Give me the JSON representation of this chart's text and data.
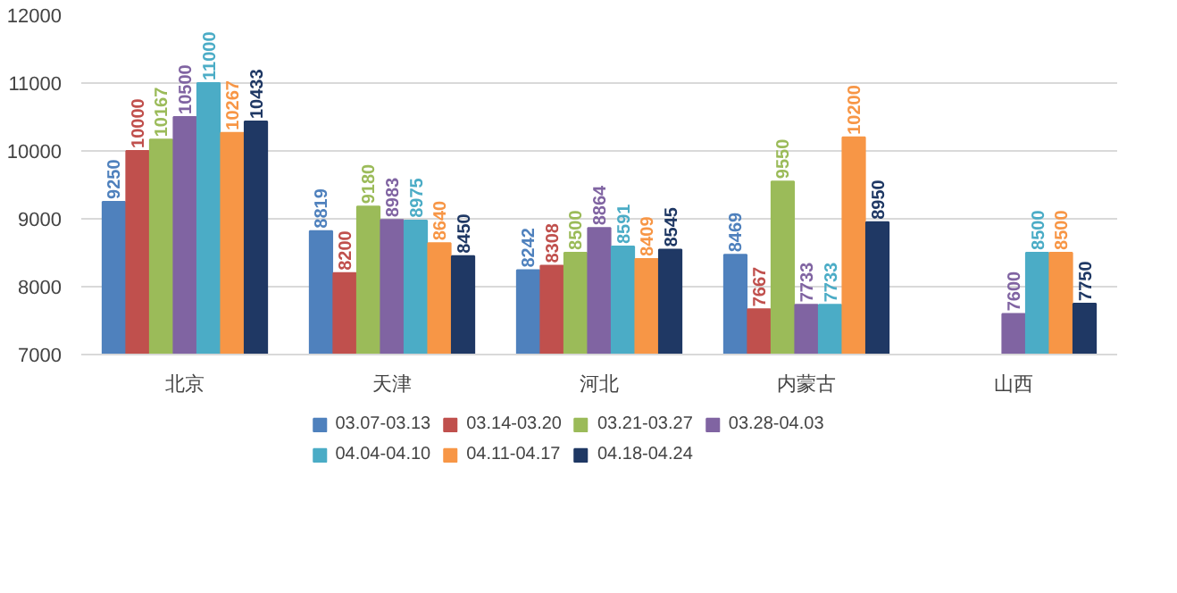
{
  "chart_data": {
    "type": "bar",
    "categories": [
      "北京",
      "天津",
      "河北",
      "内蒙古",
      "山西"
    ],
    "series": [
      {
        "name": "03.07-03.13",
        "color": "#4f81bd",
        "values": [
          9250,
          8819,
          8242,
          8469,
          null
        ]
      },
      {
        "name": "03.14-03.20",
        "color": "#c0504d",
        "values": [
          10000,
          8200,
          8308,
          7667,
          null
        ]
      },
      {
        "name": "03.21-03.27",
        "color": "#9bbb59",
        "values": [
          10167,
          9180,
          8500,
          9550,
          null
        ]
      },
      {
        "name": "03.28-04.03",
        "color": "#8064a2",
        "values": [
          10500,
          8983,
          8864,
          7733,
          7600
        ]
      },
      {
        "name": "04.04-04.10",
        "color": "#4bacc6",
        "values": [
          11000,
          8975,
          8591,
          7733,
          8500
        ]
      },
      {
        "name": "04.11-04.17",
        "color": "#f79646",
        "values": [
          10267,
          8640,
          8409,
          10200,
          8500
        ]
      },
      {
        "name": "04.18-04.24",
        "color": "#1f3864",
        "values": [
          10433,
          8450,
          8545,
          8950,
          7750
        ]
      }
    ],
    "ylim": [
      7000,
      12000
    ],
    "yticks": [
      7000,
      8000,
      9000,
      10000,
      11000,
      12000
    ],
    "grid": "y",
    "legend": "bottom",
    "data_labels": true
  }
}
